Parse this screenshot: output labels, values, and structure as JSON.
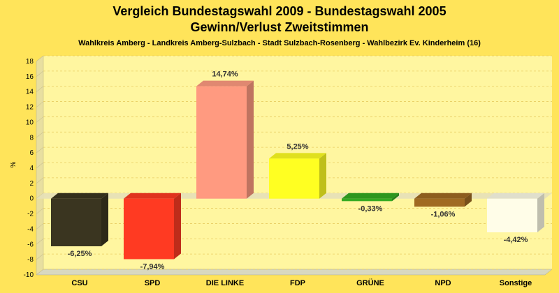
{
  "chart_data": {
    "type": "bar",
    "title": "Vergleich Bundestagswahl 2009 - Bundestagswahl 2005",
    "subtitle": "Gewinn/Verlust Zweitstimmen",
    "subsubtitle": "Wahlkreis Amberg - Landkreis Amberg-Sulzbach - Stadt Sulzbach-Rosenberg - Wahlbezirk Ev. Kinderheim (16)",
    "ylabel": "%",
    "xlabel": "",
    "ylim": [
      -10,
      18
    ],
    "yticks": [
      18,
      16,
      14,
      12,
      10,
      8,
      6,
      4,
      2,
      0,
      -2,
      -4,
      -6,
      -8,
      -10
    ],
    "categories": [
      "CSU",
      "SPD",
      "DIE LINKE",
      "FDP",
      "GRÜNE",
      "NPD",
      "Sonstige"
    ],
    "values": [
      -6.25,
      -7.94,
      14.74,
      5.25,
      -0.33,
      -1.06,
      -4.42
    ],
    "value_labels": [
      "-6,25%",
      "-7,94%",
      "14,74%",
      "5,25%",
      "-0,33%",
      "-1,06%",
      "-4,42%"
    ],
    "colors": [
      "#3a3520",
      "#ff3a22",
      "#ff9a80",
      "#ffff22",
      "#33aa22",
      "#a06a22",
      "#fffde8"
    ],
    "grid": true,
    "legend": "none"
  }
}
